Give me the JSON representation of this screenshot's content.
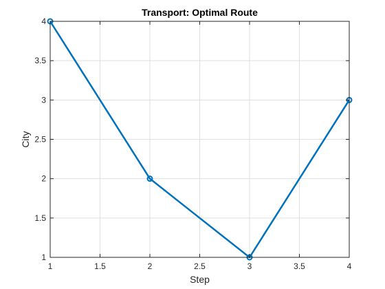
{
  "chart_data": {
    "type": "line",
    "title": "Transport: Optimal Route",
    "xlabel": "Step",
    "ylabel": "City",
    "xlim": [
      1,
      4
    ],
    "ylim": [
      1,
      4
    ],
    "xticks": [
      1,
      1.5,
      2,
      2.5,
      3,
      3.5,
      4
    ],
    "yticks": [
      1,
      1.5,
      2,
      2.5,
      3,
      3.5,
      4
    ],
    "xtick_labels": [
      "1",
      "1.5",
      "2",
      "2.5",
      "3",
      "3.5",
      "4"
    ],
    "ytick_labels": [
      "1",
      "1.5",
      "2",
      "2.5",
      "3",
      "3.5",
      "4"
    ],
    "grid": true,
    "series": [
      {
        "x": [
          1,
          2,
          3,
          4
        ],
        "y": [
          4,
          2,
          1,
          3
        ],
        "color": "#0072BD",
        "marker": "circle"
      }
    ]
  }
}
